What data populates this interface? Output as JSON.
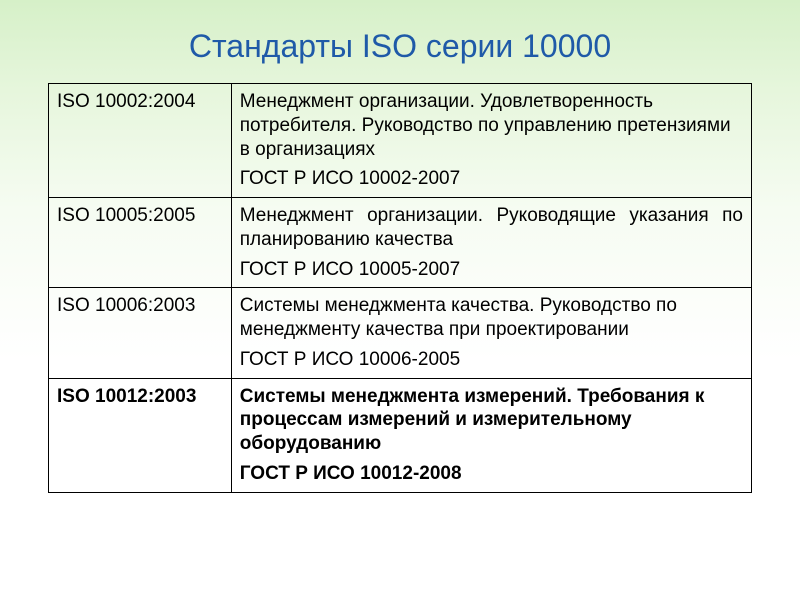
{
  "title": "Стандарты ISO серии 10000",
  "table": {
    "rows": [
      {
        "iso": "ISO 10002:2004",
        "desc": "Менеджмент организации. Удовлетворенность потребителя. Руководство по управлению претензиями в организациях",
        "gost": "ГОСТ Р ИСО 10002-2007",
        "bold": false,
        "justify": false
      },
      {
        "iso": "ISO 10005:2005",
        "desc": "Менеджмент организации. Руководящие указания по планированию качества",
        "gost": "ГОСТ Р ИСО 10005-2007",
        "bold": false,
        "justify": true
      },
      {
        "iso": "ISO 10006:2003",
        "desc": "Системы менеджмента качества. Руководство по менеджменту качества при проектировании",
        "gost": "ГОСТ Р ИСО 10006-2005",
        "bold": false,
        "justify": false
      },
      {
        "iso": "ISO 10012:2003",
        "desc": "Системы менеджмента измерений. Требования к процессам измерений и измерительному оборудованию",
        "gost": "ГОСТ Р ИСО 10012-2008",
        "bold": true,
        "justify": false
      }
    ]
  },
  "colors": {
    "title": "#1f5aa8",
    "border": "#000000",
    "bg_top": "#d6f0c8",
    "bg_bottom": "#ffffff"
  }
}
